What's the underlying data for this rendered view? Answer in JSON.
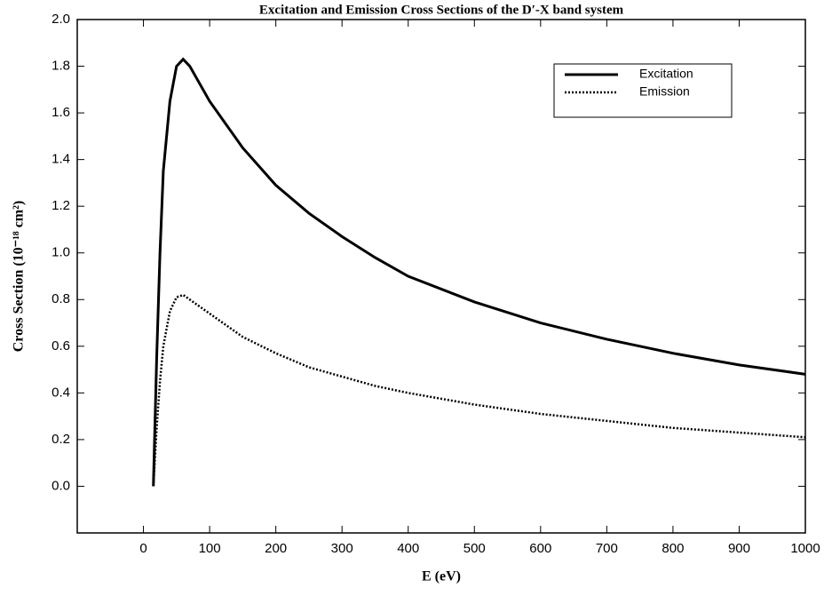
{
  "chart_data": {
    "type": "line",
    "title": "Excitation and Emission Cross Sections of the D′-X band system",
    "xlabel": "E (eV)",
    "ylabel": "Cross Section (10⁻¹⁸ cm²)",
    "x": [
      15,
      20,
      25,
      30,
      40,
      50,
      60,
      70,
      100,
      150,
      200,
      250,
      300,
      350,
      400,
      500,
      600,
      700,
      800,
      900,
      1000
    ],
    "series": [
      {
        "name": "Excitation",
        "color": "#000000",
        "dash": "solid",
        "values": [
          0,
          0.55,
          1.0,
          1.35,
          1.65,
          1.8,
          1.83,
          1.8,
          1.65,
          1.45,
          1.29,
          1.17,
          1.07,
          0.98,
          0.9,
          0.79,
          0.7,
          0.63,
          0.57,
          0.52,
          0.48
        ]
      },
      {
        "name": "Emission",
        "color": "#000000",
        "dash": "dotted",
        "values": [
          0,
          0.25,
          0.45,
          0.6,
          0.75,
          0.81,
          0.82,
          0.8,
          0.74,
          0.64,
          0.57,
          0.51,
          0.47,
          0.43,
          0.4,
          0.35,
          0.31,
          0.28,
          0.25,
          0.23,
          0.21
        ]
      }
    ],
    "xlim": [
      -100,
      1000
    ],
    "ylim": [
      -0.2,
      2.0
    ],
    "xticks": [
      0,
      100,
      200,
      300,
      400,
      500,
      600,
      700,
      800,
      900,
      1000
    ],
    "yticks": [
      {
        "value": 0,
        "label": "0.0"
      },
      0.2,
      0.4,
      0.6,
      0.8,
      {
        "value": 1,
        "label": "1.0"
      },
      1.2,
      1.4,
      1.6,
      1.8,
      {
        "value": 2,
        "label": "2.0"
      }
    ],
    "grid": false,
    "legend": "upper right"
  }
}
